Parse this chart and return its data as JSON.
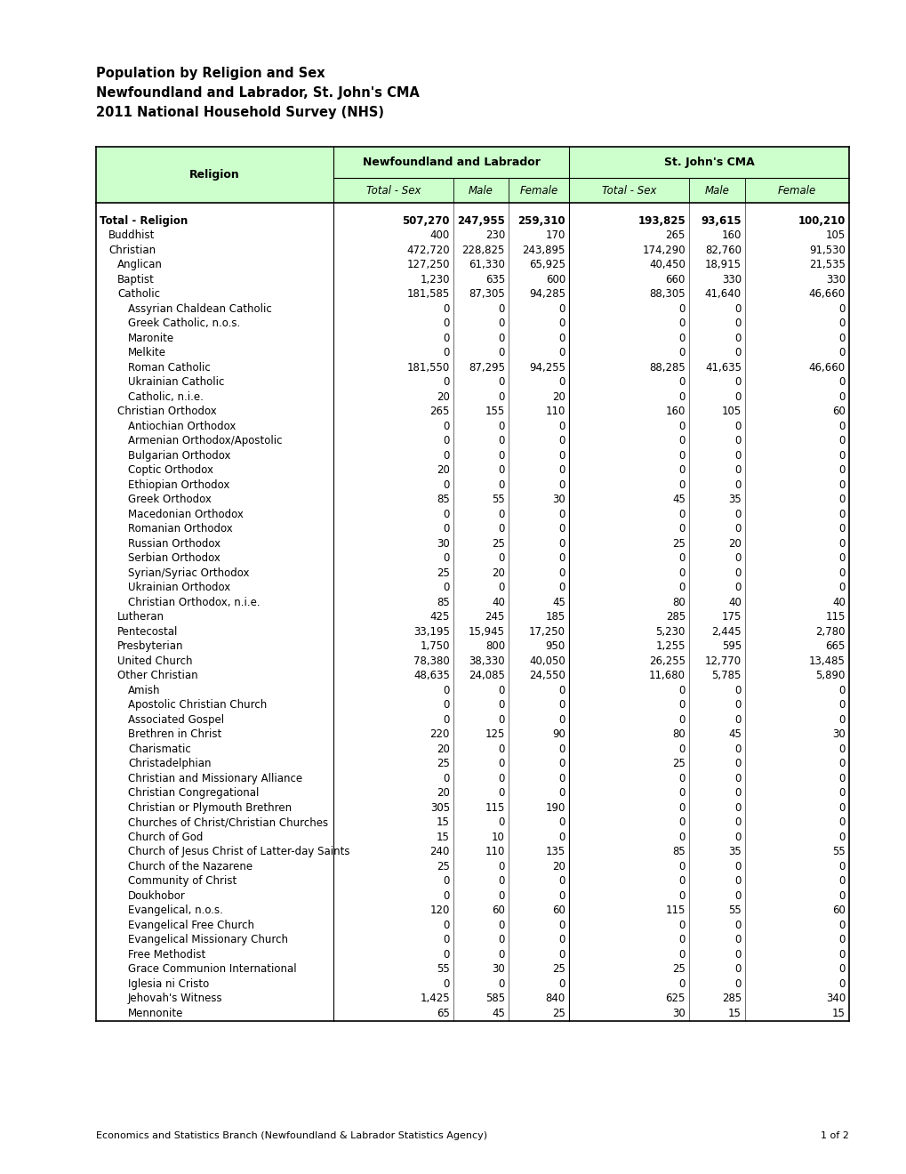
{
  "title_lines": [
    "Population by Religion and Sex",
    "Newfoundland and Labrador, St. John's CMA",
    "2011 National Household Survey (NHS)"
  ],
  "header_bg": "#ccffcc",
  "col_header1": "Newfoundland and Labrador",
  "col_header2": "St. John's CMA",
  "sub_headers": [
    "Total - Sex",
    "Male",
    "Female",
    "Total - Sex",
    "Male",
    "Female"
  ],
  "row_header": "Religion",
  "footer": "Economics and Statistics Branch (Newfoundland & Labrador Statistics Agency)",
  "page": "1 of 2",
  "rows": [
    {
      "label": "Total - Religion",
      "indent": 0,
      "bold": true,
      "values": [
        "507,270",
        "247,955",
        "259,310",
        "193,825",
        "93,615",
        "100,210"
      ]
    },
    {
      "label": "Buddhist",
      "indent": 1,
      "bold": false,
      "values": [
        "400",
        "230",
        "170",
        "265",
        "160",
        "105"
      ]
    },
    {
      "label": "Christian",
      "indent": 1,
      "bold": false,
      "values": [
        "472,720",
        "228,825",
        "243,895",
        "174,290",
        "82,760",
        "91,530"
      ]
    },
    {
      "label": "Anglican",
      "indent": 2,
      "bold": false,
      "values": [
        "127,250",
        "61,330",
        "65,925",
        "40,450",
        "18,915",
        "21,535"
      ]
    },
    {
      "label": "Baptist",
      "indent": 2,
      "bold": false,
      "values": [
        "1,230",
        "635",
        "600",
        "660",
        "330",
        "330"
      ]
    },
    {
      "label": "Catholic",
      "indent": 2,
      "bold": false,
      "values": [
        "181,585",
        "87,305",
        "94,285",
        "88,305",
        "41,640",
        "46,660"
      ]
    },
    {
      "label": "Assyrian Chaldean Catholic",
      "indent": 3,
      "bold": false,
      "values": [
        "0",
        "0",
        "0",
        "0",
        "0",
        "0"
      ]
    },
    {
      "label": "Greek Catholic, n.o.s.",
      "indent": 3,
      "bold": false,
      "values": [
        "0",
        "0",
        "0",
        "0",
        "0",
        "0"
      ]
    },
    {
      "label": "Maronite",
      "indent": 3,
      "bold": false,
      "values": [
        "0",
        "0",
        "0",
        "0",
        "0",
        "0"
      ]
    },
    {
      "label": "Melkite",
      "indent": 3,
      "bold": false,
      "values": [
        "0",
        "0",
        "0",
        "0",
        "0",
        "0"
      ]
    },
    {
      "label": "Roman Catholic",
      "indent": 3,
      "bold": false,
      "values": [
        "181,550",
        "87,295",
        "94,255",
        "88,285",
        "41,635",
        "46,660"
      ]
    },
    {
      "label": "Ukrainian Catholic",
      "indent": 3,
      "bold": false,
      "values": [
        "0",
        "0",
        "0",
        "0",
        "0",
        "0"
      ]
    },
    {
      "label": "Catholic, n.i.e.",
      "indent": 3,
      "bold": false,
      "values": [
        "20",
        "0",
        "20",
        "0",
        "0",
        "0"
      ]
    },
    {
      "label": "Christian Orthodox",
      "indent": 2,
      "bold": false,
      "values": [
        "265",
        "155",
        "110",
        "160",
        "105",
        "60"
      ]
    },
    {
      "label": "Antiochian Orthodox",
      "indent": 3,
      "bold": false,
      "values": [
        "0",
        "0",
        "0",
        "0",
        "0",
        "0"
      ]
    },
    {
      "label": "Armenian Orthodox/Apostolic",
      "indent": 3,
      "bold": false,
      "values": [
        "0",
        "0",
        "0",
        "0",
        "0",
        "0"
      ]
    },
    {
      "label": "Bulgarian Orthodox",
      "indent": 3,
      "bold": false,
      "values": [
        "0",
        "0",
        "0",
        "0",
        "0",
        "0"
      ]
    },
    {
      "label": "Coptic Orthodox",
      "indent": 3,
      "bold": false,
      "values": [
        "20",
        "0",
        "0",
        "0",
        "0",
        "0"
      ]
    },
    {
      "label": "Ethiopian Orthodox",
      "indent": 3,
      "bold": false,
      "values": [
        "0",
        "0",
        "0",
        "0",
        "0",
        "0"
      ]
    },
    {
      "label": "Greek Orthodox",
      "indent": 3,
      "bold": false,
      "values": [
        "85",
        "55",
        "30",
        "45",
        "35",
        "0"
      ]
    },
    {
      "label": "Macedonian Orthodox",
      "indent": 3,
      "bold": false,
      "values": [
        "0",
        "0",
        "0",
        "0",
        "0",
        "0"
      ]
    },
    {
      "label": "Romanian Orthodox",
      "indent": 3,
      "bold": false,
      "values": [
        "0",
        "0",
        "0",
        "0",
        "0",
        "0"
      ]
    },
    {
      "label": "Russian Orthodox",
      "indent": 3,
      "bold": false,
      "values": [
        "30",
        "25",
        "0",
        "25",
        "20",
        "0"
      ]
    },
    {
      "label": "Serbian Orthodox",
      "indent": 3,
      "bold": false,
      "values": [
        "0",
        "0",
        "0",
        "0",
        "0",
        "0"
      ]
    },
    {
      "label": "Syrian/Syriac Orthodox",
      "indent": 3,
      "bold": false,
      "values": [
        "25",
        "20",
        "0",
        "0",
        "0",
        "0"
      ]
    },
    {
      "label": "Ukrainian Orthodox",
      "indent": 3,
      "bold": false,
      "values": [
        "0",
        "0",
        "0",
        "0",
        "0",
        "0"
      ]
    },
    {
      "label": "Christian Orthodox, n.i.e.",
      "indent": 3,
      "bold": false,
      "values": [
        "85",
        "40",
        "45",
        "80",
        "40",
        "40"
      ]
    },
    {
      "label": "Lutheran",
      "indent": 2,
      "bold": false,
      "values": [
        "425",
        "245",
        "185",
        "285",
        "175",
        "115"
      ]
    },
    {
      "label": "Pentecostal",
      "indent": 2,
      "bold": false,
      "values": [
        "33,195",
        "15,945",
        "17,250",
        "5,230",
        "2,445",
        "2,780"
      ]
    },
    {
      "label": "Presbyterian",
      "indent": 2,
      "bold": false,
      "values": [
        "1,750",
        "800",
        "950",
        "1,255",
        "595",
        "665"
      ]
    },
    {
      "label": "United Church",
      "indent": 2,
      "bold": false,
      "values": [
        "78,380",
        "38,330",
        "40,050",
        "26,255",
        "12,770",
        "13,485"
      ]
    },
    {
      "label": "Other Christian",
      "indent": 2,
      "bold": false,
      "values": [
        "48,635",
        "24,085",
        "24,550",
        "11,680",
        "5,785",
        "5,890"
      ]
    },
    {
      "label": "Amish",
      "indent": 3,
      "bold": false,
      "values": [
        "0",
        "0",
        "0",
        "0",
        "0",
        "0"
      ]
    },
    {
      "label": "Apostolic Christian Church",
      "indent": 3,
      "bold": false,
      "values": [
        "0",
        "0",
        "0",
        "0",
        "0",
        "0"
      ]
    },
    {
      "label": "Associated Gospel",
      "indent": 3,
      "bold": false,
      "values": [
        "0",
        "0",
        "0",
        "0",
        "0",
        "0"
      ]
    },
    {
      "label": "Brethren in Christ",
      "indent": 3,
      "bold": false,
      "values": [
        "220",
        "125",
        "90",
        "80",
        "45",
        "30"
      ]
    },
    {
      "label": "Charismatic",
      "indent": 3,
      "bold": false,
      "values": [
        "20",
        "0",
        "0",
        "0",
        "0",
        "0"
      ]
    },
    {
      "label": "Christadelphian",
      "indent": 3,
      "bold": false,
      "values": [
        "25",
        "0",
        "0",
        "25",
        "0",
        "0"
      ]
    },
    {
      "label": "Christian and Missionary Alliance",
      "indent": 3,
      "bold": false,
      "values": [
        "0",
        "0",
        "0",
        "0",
        "0",
        "0"
      ]
    },
    {
      "label": "Christian Congregational",
      "indent": 3,
      "bold": false,
      "values": [
        "20",
        "0",
        "0",
        "0",
        "0",
        "0"
      ]
    },
    {
      "label": "Christian or Plymouth Brethren",
      "indent": 3,
      "bold": false,
      "values": [
        "305",
        "115",
        "190",
        "0",
        "0",
        "0"
      ]
    },
    {
      "label": "Churches of Christ/Christian Churches",
      "indent": 3,
      "bold": false,
      "values": [
        "15",
        "0",
        "0",
        "0",
        "0",
        "0"
      ]
    },
    {
      "label": "Church of God",
      "indent": 3,
      "bold": false,
      "values": [
        "15",
        "10",
        "0",
        "0",
        "0",
        "0"
      ]
    },
    {
      "label": "Church of Jesus Christ of Latter-day Saints",
      "indent": 3,
      "bold": false,
      "values": [
        "240",
        "110",
        "135",
        "85",
        "35",
        "55"
      ]
    },
    {
      "label": "Church of the Nazarene",
      "indent": 3,
      "bold": false,
      "values": [
        "25",
        "0",
        "20",
        "0",
        "0",
        "0"
      ]
    },
    {
      "label": "Community of Christ",
      "indent": 3,
      "bold": false,
      "values": [
        "0",
        "0",
        "0",
        "0",
        "0",
        "0"
      ]
    },
    {
      "label": "Doukhobor",
      "indent": 3,
      "bold": false,
      "values": [
        "0",
        "0",
        "0",
        "0",
        "0",
        "0"
      ]
    },
    {
      "label": "Evangelical, n.o.s.",
      "indent": 3,
      "bold": false,
      "values": [
        "120",
        "60",
        "60",
        "115",
        "55",
        "60"
      ]
    },
    {
      "label": "Evangelical Free Church",
      "indent": 3,
      "bold": false,
      "values": [
        "0",
        "0",
        "0",
        "0",
        "0",
        "0"
      ]
    },
    {
      "label": "Evangelical Missionary Church",
      "indent": 3,
      "bold": false,
      "values": [
        "0",
        "0",
        "0",
        "0",
        "0",
        "0"
      ]
    },
    {
      "label": "Free Methodist",
      "indent": 3,
      "bold": false,
      "values": [
        "0",
        "0",
        "0",
        "0",
        "0",
        "0"
      ]
    },
    {
      "label": "Grace Communion International",
      "indent": 3,
      "bold": false,
      "values": [
        "55",
        "30",
        "25",
        "25",
        "0",
        "0"
      ]
    },
    {
      "label": "Iglesia ni Cristo",
      "indent": 3,
      "bold": false,
      "values": [
        "0",
        "0",
        "0",
        "0",
        "0",
        "0"
      ]
    },
    {
      "label": "Jehovah's Witness",
      "indent": 3,
      "bold": false,
      "values": [
        "1,425",
        "585",
        "840",
        "625",
        "285",
        "340"
      ]
    },
    {
      "label": "Mennonite",
      "indent": 3,
      "bold": false,
      "values": [
        "65",
        "45",
        "25",
        "30",
        "15",
        "15"
      ]
    }
  ]
}
